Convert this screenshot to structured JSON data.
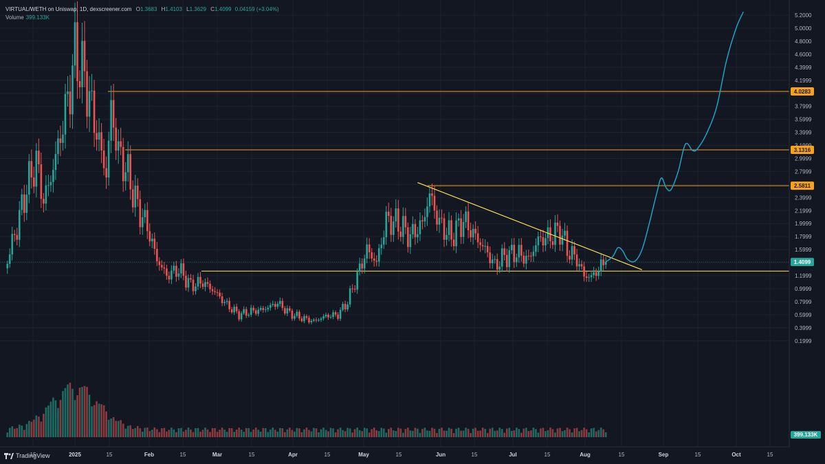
{
  "header": {
    "symbol": "VIRTUAL/WETH on Uniswap, 1D, dexscreener.com",
    "open_label": "O",
    "open": "1.3683",
    "high_label": "H",
    "high": "1.4103",
    "low_label": "L",
    "low": "1.3629",
    "close_label": "C",
    "close": "1.4099",
    "change": "0.04159 (+3.04%)",
    "volume_label": "Volume",
    "volume": "399.133K"
  },
  "brand": "TradingView",
  "colors": {
    "background": "#131722",
    "up": "#26a69a",
    "down": "#ef5350",
    "vol_up": "#1e6b64",
    "vol_down": "#8b3a3e",
    "level": "#f7a21b",
    "trendline": "#ffe34d",
    "projection": "#1fa3c4",
    "price_tag": "#26a69a"
  },
  "chart_data": {
    "type": "candlestick",
    "x_axis_labels": [
      "15",
      "2025",
      "15",
      "Feb",
      "15",
      "Mar",
      "15",
      "Apr",
      "15",
      "May",
      "15",
      "Jun",
      "15",
      "Jul",
      "15",
      "Aug",
      "15",
      "Sep",
      "15",
      "Oct",
      "15"
    ],
    "y_axis_labels": [
      "5.2000",
      "5.0000",
      "4.8000",
      "4.6000",
      "4.3999",
      "4.1999",
      "3.9999",
      "3.7999",
      "3.5999",
      "3.3999",
      "3.1999",
      "2.9999",
      "2.7999",
      "2.5999",
      "2.3999",
      "2.1999",
      "1.9999",
      "1.7999",
      "1.5999",
      "1.3999",
      "1.1999",
      "0.9999",
      "0.7999",
      "0.5999",
      "0.3999",
      "0.1999"
    ],
    "levels": [
      {
        "label": "4.0283",
        "value": 4.0283
      },
      {
        "label": "3.1316",
        "value": 3.1316
      },
      {
        "label": "2.5811",
        "value": 2.5811
      },
      {
        "value": 1.27
      }
    ],
    "last_price": {
      "label": "1.4099",
      "value": 1.4099
    },
    "volume_tag": "399.133K",
    "close_series": [
      {
        "date": "2024-12-04",
        "close": 1.45
      },
      {
        "date": "2024-12-08",
        "close": 1.95
      },
      {
        "date": "2024-12-12",
        "close": 2.55
      },
      {
        "date": "2024-12-16",
        "close": 2.95
      },
      {
        "date": "2024-12-19",
        "close": 2.35
      },
      {
        "date": "2024-12-22",
        "close": 2.7
      },
      {
        "date": "2024-12-26",
        "close": 3.35
      },
      {
        "date": "2024-12-30",
        "close": 4.1
      },
      {
        "date": "2025-01-01",
        "close": 4.6
      },
      {
        "date": "2025-01-05",
        "close": 4.25
      },
      {
        "date": "2025-01-08",
        "close": 3.75
      },
      {
        "date": "2025-01-11",
        "close": 3.25
      },
      {
        "date": "2025-01-14",
        "close": 2.75
      },
      {
        "date": "2025-01-16",
        "close": 3.75
      },
      {
        "date": "2025-01-19",
        "close": 3.1
      },
      {
        "date": "2025-01-23",
        "close": 2.75
      },
      {
        "date": "2025-01-27",
        "close": 2.25
      },
      {
        "date": "2025-01-31",
        "close": 1.95
      },
      {
        "date": "2025-02-04",
        "close": 1.45
      },
      {
        "date": "2025-02-08",
        "close": 1.2
      },
      {
        "date": "2025-02-13",
        "close": 1.3
      },
      {
        "date": "2025-02-18",
        "close": 1.05
      },
      {
        "date": "2025-02-23",
        "close": 1.1
      },
      {
        "date": "2025-02-28",
        "close": 0.95
      },
      {
        "date": "2025-03-05",
        "close": 0.75
      },
      {
        "date": "2025-03-10",
        "close": 0.6
      },
      {
        "date": "2025-03-15",
        "close": 0.65
      },
      {
        "date": "2025-03-20",
        "close": 0.68
      },
      {
        "date": "2025-03-26",
        "close": 0.78
      },
      {
        "date": "2025-03-31",
        "close": 0.62
      },
      {
        "date": "2025-04-05",
        "close": 0.55
      },
      {
        "date": "2025-04-10",
        "close": 0.5
      },
      {
        "date": "2025-04-15",
        "close": 0.58
      },
      {
        "date": "2025-04-20",
        "close": 0.6
      },
      {
        "date": "2025-04-24",
        "close": 0.8
      },
      {
        "date": "2025-04-28",
        "close": 1.2
      },
      {
        "date": "2025-05-02",
        "close": 1.6
      },
      {
        "date": "2025-05-06",
        "close": 1.4
      },
      {
        "date": "2025-05-10",
        "close": 2.05
      },
      {
        "date": "2025-05-15",
        "close": 2.0
      },
      {
        "date": "2025-05-20",
        "close": 1.8
      },
      {
        "date": "2025-05-25",
        "close": 2.0
      },
      {
        "date": "2025-05-28",
        "close": 2.45
      },
      {
        "date": "2025-06-01",
        "close": 2.0
      },
      {
        "date": "2025-06-06",
        "close": 1.8
      },
      {
        "date": "2025-06-11",
        "close": 2.05
      },
      {
        "date": "2025-06-16",
        "close": 1.8
      },
      {
        "date": "2025-06-21",
        "close": 1.55
      },
      {
        "date": "2025-06-24",
        "close": 1.35
      },
      {
        "date": "2025-06-28",
        "close": 1.5
      },
      {
        "date": "2025-07-03",
        "close": 1.55
      },
      {
        "date": "2025-07-08",
        "close": 1.45
      },
      {
        "date": "2025-07-12",
        "close": 1.75
      },
      {
        "date": "2025-07-17",
        "close": 1.8
      },
      {
        "date": "2025-07-21",
        "close": 1.9
      },
      {
        "date": "2025-07-24",
        "close": 1.6
      },
      {
        "date": "2025-07-28",
        "close": 1.45
      },
      {
        "date": "2025-07-31",
        "close": 1.2
      },
      {
        "date": "2025-08-03",
        "close": 1.18
      },
      {
        "date": "2025-08-06",
        "close": 1.3
      },
      {
        "date": "2025-08-09",
        "close": 1.41
      }
    ],
    "trendline": [
      {
        "date": "2025-05-23",
        "value": 2.63
      },
      {
        "date": "2025-08-24",
        "value": 1.29
      }
    ],
    "projection": [
      {
        "date": "2025-08-09",
        "value": 1.41
      },
      {
        "date": "2025-08-12",
        "value": 1.5
      },
      {
        "date": "2025-08-14",
        "value": 1.63
      },
      {
        "date": "2025-08-16",
        "value": 1.58
      },
      {
        "date": "2025-08-18",
        "value": 1.45
      },
      {
        "date": "2025-08-21",
        "value": 1.42
      },
      {
        "date": "2025-08-24",
        "value": 1.6
      },
      {
        "date": "2025-08-27",
        "value": 2.0
      },
      {
        "date": "2025-08-30",
        "value": 2.45
      },
      {
        "date": "2025-09-01",
        "value": 2.7
      },
      {
        "date": "2025-09-03",
        "value": 2.55
      },
      {
        "date": "2025-09-05",
        "value": 2.52
      },
      {
        "date": "2025-09-08",
        "value": 2.8
      },
      {
        "date": "2025-09-11",
        "value": 3.22
      },
      {
        "date": "2025-09-14",
        "value": 3.12
      },
      {
        "date": "2025-09-16",
        "value": 3.15
      },
      {
        "date": "2025-09-20",
        "value": 3.4
      },
      {
        "date": "2025-09-24",
        "value": 3.8
      },
      {
        "date": "2025-09-28",
        "value": 4.5
      },
      {
        "date": "2025-10-02",
        "value": 5.0
      },
      {
        "date": "2025-10-05",
        "value": 5.25
      }
    ]
  }
}
